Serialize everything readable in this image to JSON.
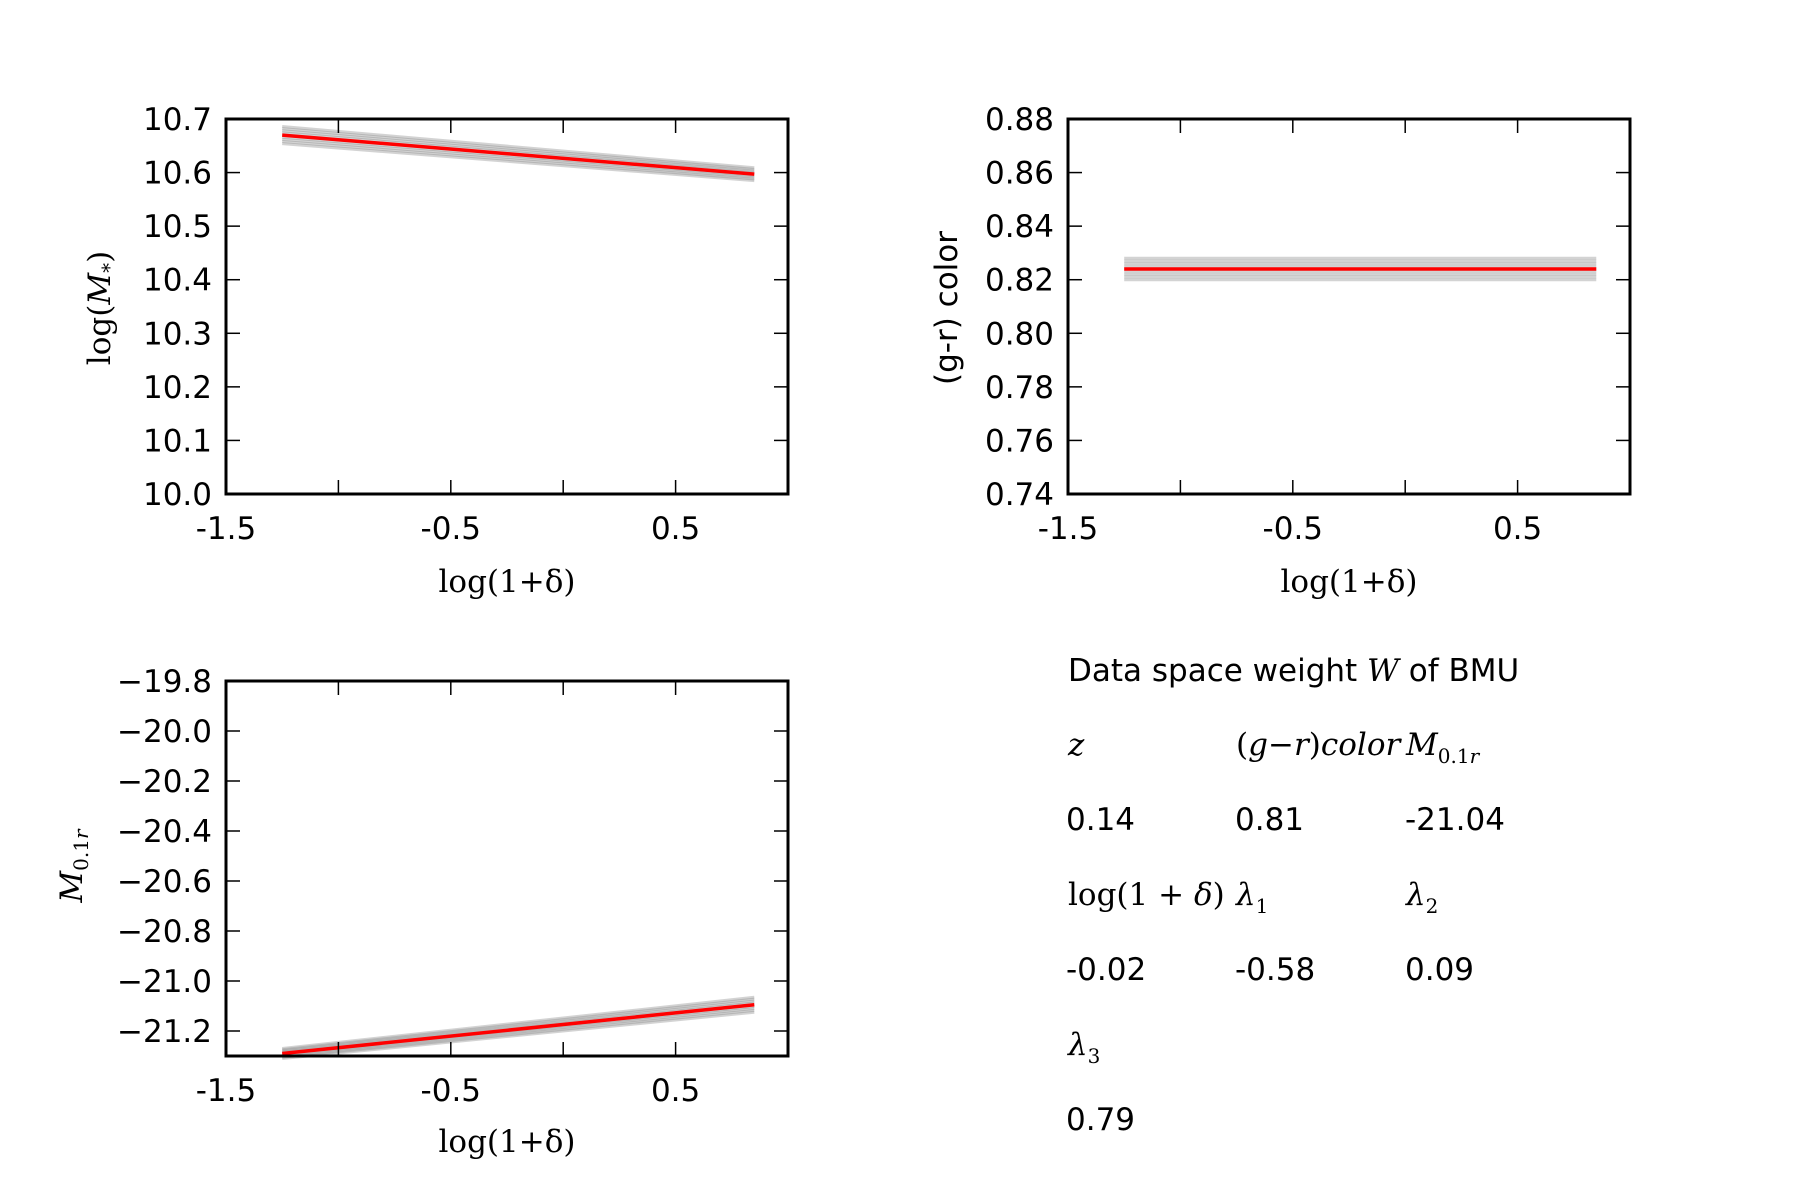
{
  "chart_data": [
    {
      "type": "line",
      "id": "mass",
      "xlabel": "log(1+δ)",
      "ylabel": "log(M*)",
      "xlim": [
        -1.5,
        1.0
      ],
      "ylim": [
        10.0,
        10.7
      ],
      "xticks": [
        -1.5,
        -1.0,
        -0.5,
        0.0,
        0.5,
        1.0
      ],
      "xtick_labels": [
        "-1.5",
        "",
        "-0.5",
        "",
        "0.5",
        ""
      ],
      "yticks": [
        10.0,
        10.1,
        10.2,
        10.3,
        10.4,
        10.5,
        10.6,
        10.7
      ],
      "ytick_labels": [
        "10.0",
        "10.1",
        "10.2",
        "10.3",
        "10.4",
        "10.5",
        "10.6",
        "10.7"
      ],
      "series": [
        {
          "name": "fit",
          "color": "#ff0000",
          "x": [
            -1.25,
            0.85
          ],
          "y": [
            10.67,
            10.597
          ]
        },
        {
          "name": "uncertainty band",
          "color": "#808080",
          "x": [
            -1.25,
            0.85
          ],
          "y": [
            10.67,
            10.597
          ],
          "spread": [
            0.016,
            0.012
          ]
        }
      ]
    },
    {
      "type": "line",
      "id": "color",
      "xlabel": "log(1+δ)",
      "ylabel": "(g-r) color",
      "xlim": [
        -1.5,
        1.0
      ],
      "ylim": [
        0.74,
        0.88
      ],
      "xticks": [
        -1.5,
        -1.0,
        -0.5,
        0.0,
        0.5,
        1.0
      ],
      "xtick_labels": [
        "-1.5",
        "",
        "-0.5",
        "",
        "0.5",
        ""
      ],
      "yticks": [
        0.74,
        0.76,
        0.78,
        0.8,
        0.82,
        0.84,
        0.86,
        0.88
      ],
      "ytick_labels": [
        "0.74",
        "0.76",
        "0.78",
        "0.80",
        "0.82",
        "0.84",
        "0.86",
        "0.88"
      ],
      "series": [
        {
          "name": "fit",
          "color": "#ff0000",
          "x": [
            -1.25,
            0.85
          ],
          "y": [
            0.824,
            0.824
          ]
        },
        {
          "name": "uncertainty band",
          "color": "#808080",
          "x": [
            -1.25,
            0.85
          ],
          "y": [
            0.824,
            0.824
          ],
          "spread": [
            0.004,
            0.004
          ]
        }
      ]
    },
    {
      "type": "line",
      "id": "magnitude",
      "xlabel": "log(1+δ)",
      "ylabel": "M0.1r",
      "xlim": [
        -1.5,
        1.0
      ],
      "ylim": [
        -21.3,
        -19.8
      ],
      "xticks": [
        -1.5,
        -1.0,
        -0.5,
        0.0,
        0.5,
        1.0
      ],
      "xtick_labels": [
        "-1.5",
        "",
        "-0.5",
        "",
        "0.5",
        ""
      ],
      "yticks": [
        -21.2,
        -21.0,
        -20.8,
        -20.6,
        -20.4,
        -20.2,
        -20.0,
        -19.8
      ],
      "ytick_labels": [
        "−21.2",
        "−21.0",
        "−20.8",
        "−20.6",
        "−20.4",
        "−20.2",
        "−20.0",
        "−19.8"
      ],
      "series": [
        {
          "name": "fit",
          "color": "#ff0000",
          "x": [
            -1.25,
            0.85
          ],
          "y": [
            -21.29,
            -21.095
          ]
        },
        {
          "name": "uncertainty band",
          "color": "#808080",
          "x": [
            -1.25,
            0.85
          ],
          "y": [
            -21.29,
            -21.095
          ],
          "spread": [
            0.02,
            0.03
          ]
        }
      ]
    }
  ],
  "weights": {
    "title_pre": "Data space weight ",
    "title_symbol": "W",
    "title_post": " of BMU",
    "rows": [
      {
        "type": "header",
        "cells": [
          "z",
          "(g−r)color",
          "M0.1r"
        ]
      },
      {
        "type": "values",
        "cells": [
          "0.14",
          "0.81",
          "-21.04"
        ]
      },
      {
        "type": "header",
        "cells": [
          "log(1+δ)",
          "λ1",
          "λ2"
        ]
      },
      {
        "type": "values",
        "cells": [
          "-0.02",
          "-0.58",
          "0.09"
        ]
      },
      {
        "type": "header",
        "cells": [
          "λ3"
        ]
      },
      {
        "type": "values",
        "cells": [
          "0.79"
        ]
      }
    ]
  },
  "colors": {
    "fit": "#ff0000",
    "band": "#808080",
    "axes": "#000000"
  }
}
